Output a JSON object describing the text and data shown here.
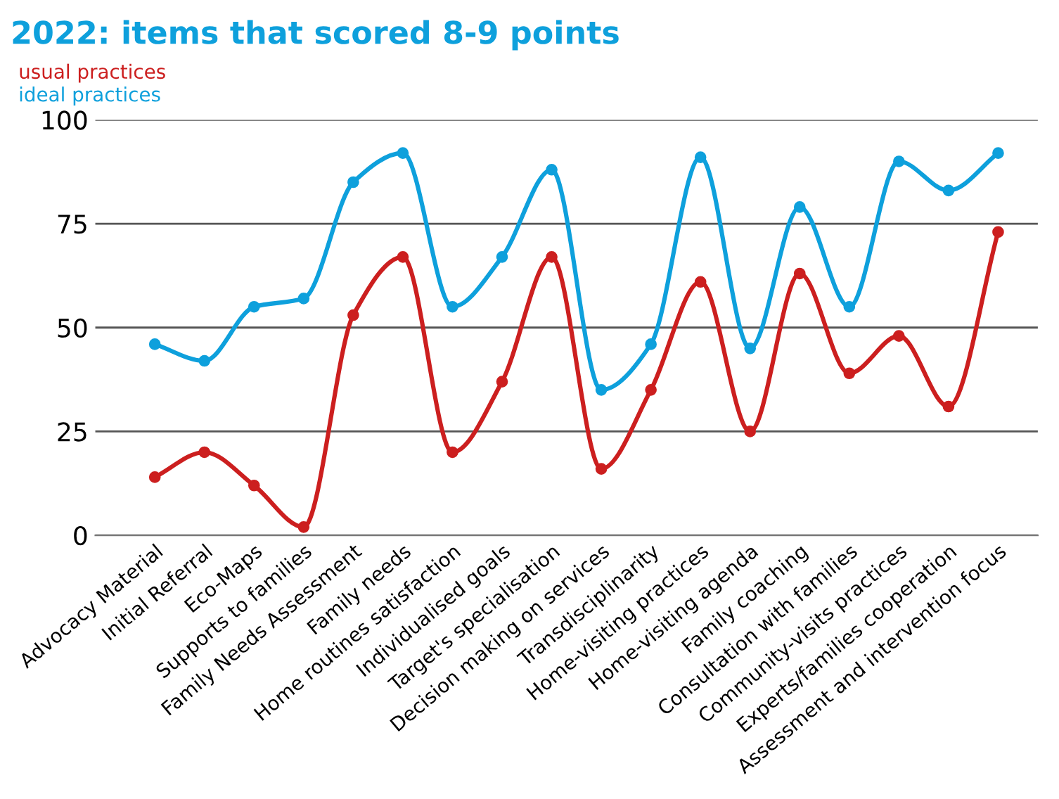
{
  "chart_data": {
    "type": "line",
    "title": "2022: items that scored 8-9 points",
    "categories": [
      "Advocacy Material",
      "Initial Referral",
      "Eco-Maps",
      "Supports to families",
      "Family Needs Assessment",
      "Family needs",
      "Home routines satisfaction",
      "Individualised goals",
      "Target's specialisation",
      "Decision making on services",
      "Transdisciplinarity",
      "Home-visiting practices",
      "Home-visiting agenda",
      "Family coaching",
      "Consultation with families",
      "Community-visits practices",
      "Experts/families cooperation",
      "Assessment and intervention focus"
    ],
    "series": [
      {
        "name": "usual practices",
        "color": "#cc1f1f",
        "values": [
          14,
          20,
          12,
          2,
          53,
          67,
          20,
          37,
          67,
          16,
          35,
          61,
          25,
          63,
          39,
          48,
          31,
          73
        ]
      },
      {
        "name": "ideal practices",
        "color": "#0ea0dc",
        "values": [
          46,
          42,
          55,
          57,
          85,
          92,
          55,
          67,
          88,
          35,
          46,
          91,
          45,
          79,
          55,
          90,
          83,
          92
        ]
      }
    ],
    "ylim": [
      0,
      100
    ],
    "yticks": [
      0,
      25,
      50,
      75,
      100
    ],
    "grid": "y",
    "legend": "top left",
    "marker": "circle",
    "line_style": "solid"
  }
}
